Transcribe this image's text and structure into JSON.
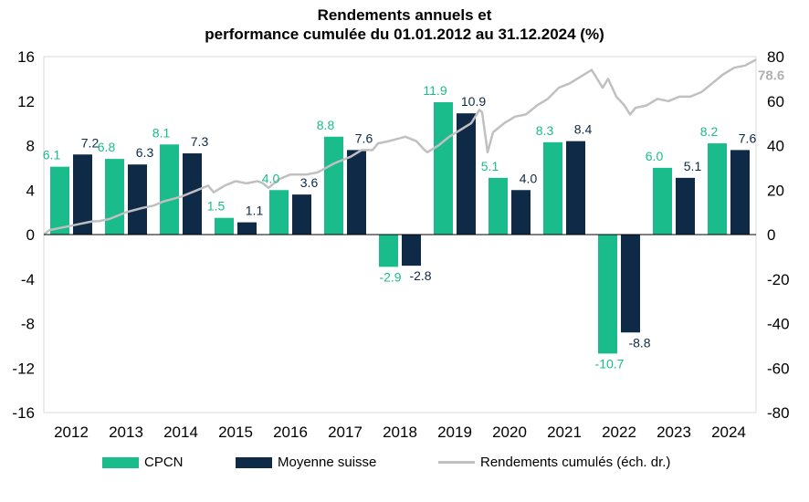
{
  "chart_data": {
    "type": "bar",
    "title_line1": "Rendements annuels et",
    "title_line2": "performance cumulée du 01.01.2012 au 31.12.2024 (%)",
    "categories": [
      "2012",
      "2013",
      "2014",
      "2015",
      "2016",
      "2017",
      "2018",
      "2019",
      "2020",
      "2021",
      "2022",
      "2023",
      "2024"
    ],
    "series": [
      {
        "name": "CPCN",
        "color": "#1abc8b",
        "values": [
          6.1,
          6.8,
          8.1,
          1.5,
          4.0,
          8.8,
          -2.9,
          11.9,
          5.1,
          8.3,
          -10.7,
          6.0,
          8.2
        ],
        "labels": [
          "6.1",
          "6.8",
          "8.1",
          "1.5",
          "4.0",
          "8.8",
          "-2.9",
          "11.9",
          "5.1",
          "8.3",
          "-10.7",
          "6.0",
          "8.2"
        ]
      },
      {
        "name": "Moyenne suisse",
        "color": "#0e2a47",
        "values": [
          7.2,
          6.3,
          7.3,
          1.1,
          3.6,
          7.6,
          -2.8,
          10.9,
          4.0,
          8.4,
          -8.8,
          5.1,
          7.6
        ],
        "labels": [
          "7.2",
          "6.3",
          "7.3",
          "1.1",
          "3.6",
          "7.6",
          "-2.8",
          "10.9",
          "4.0",
          "8.4",
          "-8.8",
          "5.1",
          "7.6"
        ]
      }
    ],
    "line_series": {
      "name": "Rendements cumulés (éch. dr.)",
      "color": "#c0c0c0",
      "axis": "right",
      "points": [
        [
          0,
          0
        ],
        [
          0.1,
          2
        ],
        [
          0.3,
          3
        ],
        [
          0.5,
          4
        ],
        [
          0.7,
          5
        ],
        [
          0.9,
          6
        ],
        [
          1.0,
          6
        ],
        [
          1.2,
          7
        ],
        [
          1.5,
          10
        ],
        [
          1.8,
          12
        ],
        [
          2.0,
          13
        ],
        [
          2.2,
          15
        ],
        [
          2.5,
          17
        ],
        [
          2.8,
          20
        ],
        [
          3.0,
          22
        ],
        [
          3.1,
          19
        ],
        [
          3.3,
          22
        ],
        [
          3.5,
          24
        ],
        [
          3.7,
          23
        ],
        [
          3.9,
          24
        ],
        [
          4.0,
          23
        ],
        [
          4.1,
          21
        ],
        [
          4.3,
          25
        ],
        [
          4.5,
          27
        ],
        [
          4.8,
          27
        ],
        [
          5.0,
          28
        ],
        [
          5.3,
          32
        ],
        [
          5.6,
          35
        ],
        [
          5.8,
          38
        ],
        [
          6.0,
          38
        ],
        [
          6.1,
          41
        ],
        [
          6.3,
          42
        ],
        [
          6.6,
          44
        ],
        [
          6.8,
          42
        ],
        [
          6.95,
          38
        ],
        [
          7.0,
          37
        ],
        [
          7.2,
          40
        ],
        [
          7.4,
          44
        ],
        [
          7.6,
          47
        ],
        [
          7.8,
          50
        ],
        [
          7.95,
          56
        ],
        [
          8.0,
          55
        ],
        [
          8.1,
          37
        ],
        [
          8.2,
          46
        ],
        [
          8.4,
          50
        ],
        [
          8.6,
          53
        ],
        [
          8.8,
          54
        ],
        [
          9.0,
          58
        ],
        [
          9.2,
          61
        ],
        [
          9.4,
          66
        ],
        [
          9.6,
          68
        ],
        [
          9.8,
          71
        ],
        [
          10.0,
          74
        ],
        [
          10.1,
          70
        ],
        [
          10.2,
          66
        ],
        [
          10.3,
          70
        ],
        [
          10.45,
          62
        ],
        [
          10.6,
          58
        ],
        [
          10.7,
          54
        ],
        [
          10.8,
          57
        ],
        [
          11.0,
          58
        ],
        [
          11.2,
          61
        ],
        [
          11.4,
          60
        ],
        [
          11.6,
          62
        ],
        [
          11.8,
          62
        ],
        [
          12.0,
          64
        ],
        [
          12.2,
          68
        ],
        [
          12.4,
          72
        ],
        [
          12.6,
          75
        ],
        [
          12.8,
          76
        ],
        [
          13.0,
          78.6
        ]
      ],
      "end_label": "78.6"
    },
    "left_axis": {
      "min": -16,
      "max": 16,
      "ticks": [
        "-16",
        "-12",
        "-8",
        "-4",
        "0",
        "4",
        "8",
        "12",
        "16"
      ]
    },
    "right_axis": {
      "min": -80,
      "max": 80,
      "ticks": [
        "-80",
        "-60",
        "-40",
        "-20",
        "0",
        "20",
        "40",
        "60",
        "80"
      ]
    },
    "legend": {
      "position": "bottom",
      "items": [
        "CPCN",
        "Moyenne suisse",
        "Rendements cumulés (éch. dr.)"
      ]
    },
    "grid": false
  }
}
